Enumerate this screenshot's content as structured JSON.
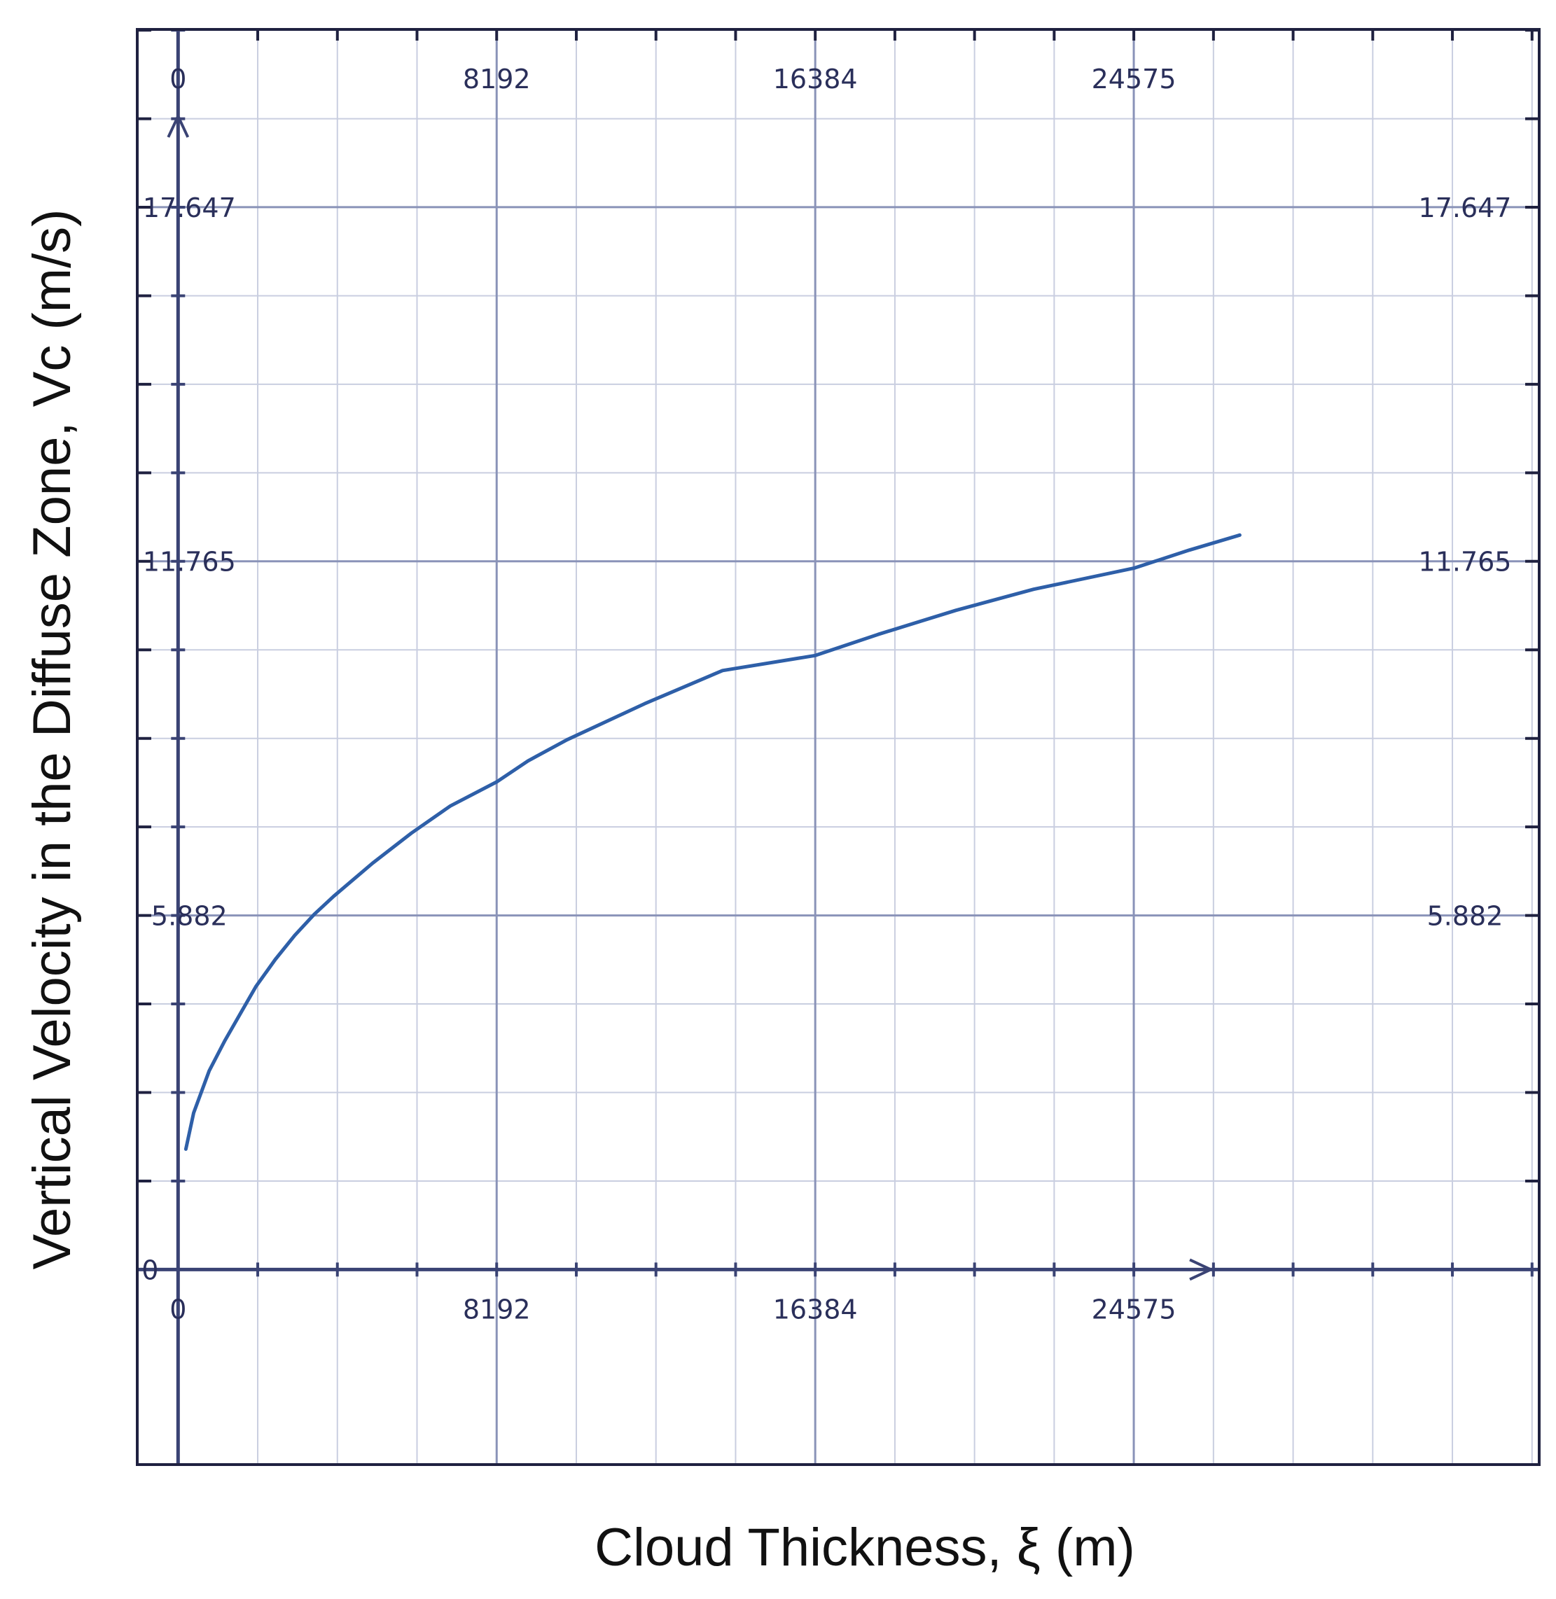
{
  "chart_data": {
    "type": "line",
    "title": "",
    "xlabel": "Cloud Thickness,  ξ (m)",
    "ylabel": "Vertical Velocity in the Diffuse Zone, Vc (m/s)",
    "xlim": [
      -1050,
      35000
    ],
    "ylim": [
      -3.24,
      20.6
    ],
    "x_ticks": [
      0,
      8192,
      16384,
      24575
    ],
    "x_tick_labels": [
      "0",
      "8192",
      "16384",
      "24575"
    ],
    "y_ticks": [
      5.882,
      11.765,
      17.647
    ],
    "y_tick_labels": [
      "5.882",
      "11.765",
      "17.647"
    ],
    "y_zero_label": "0",
    "grid": true,
    "legend": "none",
    "series": [
      {
        "color": "#2e5fa8",
        "x": [
          200,
          400,
          800,
          1200,
          1600,
          2000,
          2500,
          3000,
          3500,
          4000,
          5000,
          6000,
          7000,
          8192,
          9000,
          10000,
          12000,
          14000,
          16384,
          18000,
          20000,
          22000,
          24575,
          26000,
          27300
        ],
        "y": [
          2.0,
          2.6,
          3.3,
          3.8,
          4.25,
          4.7,
          5.15,
          5.55,
          5.9,
          6.2,
          6.75,
          7.25,
          7.7,
          8.1,
          8.45,
          8.8,
          9.4,
          9.95,
          10.2,
          10.55,
          10.95,
          11.3,
          11.65,
          11.95,
          12.2
        ]
      }
    ],
    "colors": {
      "axis": "#3a4374",
      "grid_major": "#8a93b8",
      "grid_minor": "#c9cee0",
      "frame": "#1f2140",
      "curve": "#2e5fa8"
    }
  }
}
